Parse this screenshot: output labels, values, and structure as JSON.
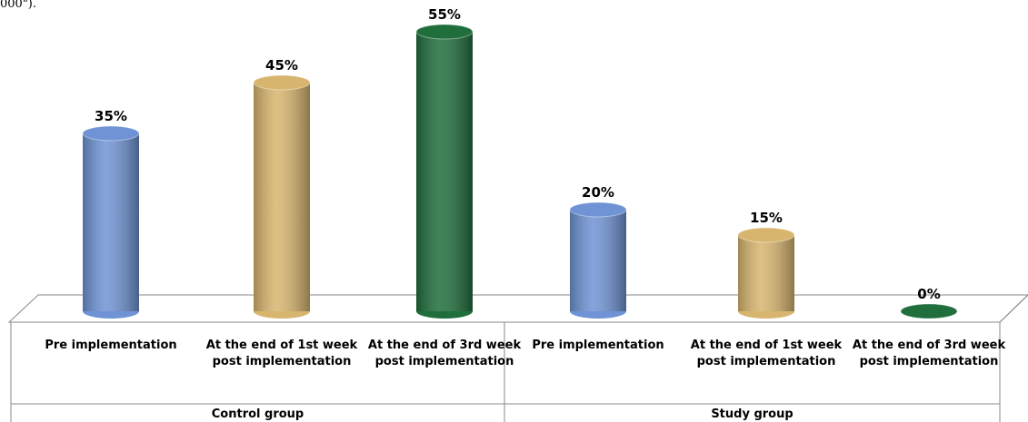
{
  "caption_fragment": "000\").",
  "chart_data": {
    "type": "bar",
    "categories": [
      "Pre implementation",
      "At the end of 1st week post implementation",
      "At the end of 3rd week post implementation",
      "Pre implementation",
      "At the end of 1st week post implementation",
      "At the end of 3rd week post implementation"
    ],
    "groups": [
      "Control group",
      "Study group"
    ],
    "values": [
      35,
      45,
      55,
      20,
      15,
      0
    ],
    "value_labels": [
      "35%",
      "45%",
      "55%",
      "20%",
      "15%",
      "0%"
    ],
    "colors": [
      "#6f93d4",
      "#d8b56e",
      "#1f6e3c",
      "#6f93d4",
      "#d8b56e",
      "#1f6e3c"
    ]
  }
}
